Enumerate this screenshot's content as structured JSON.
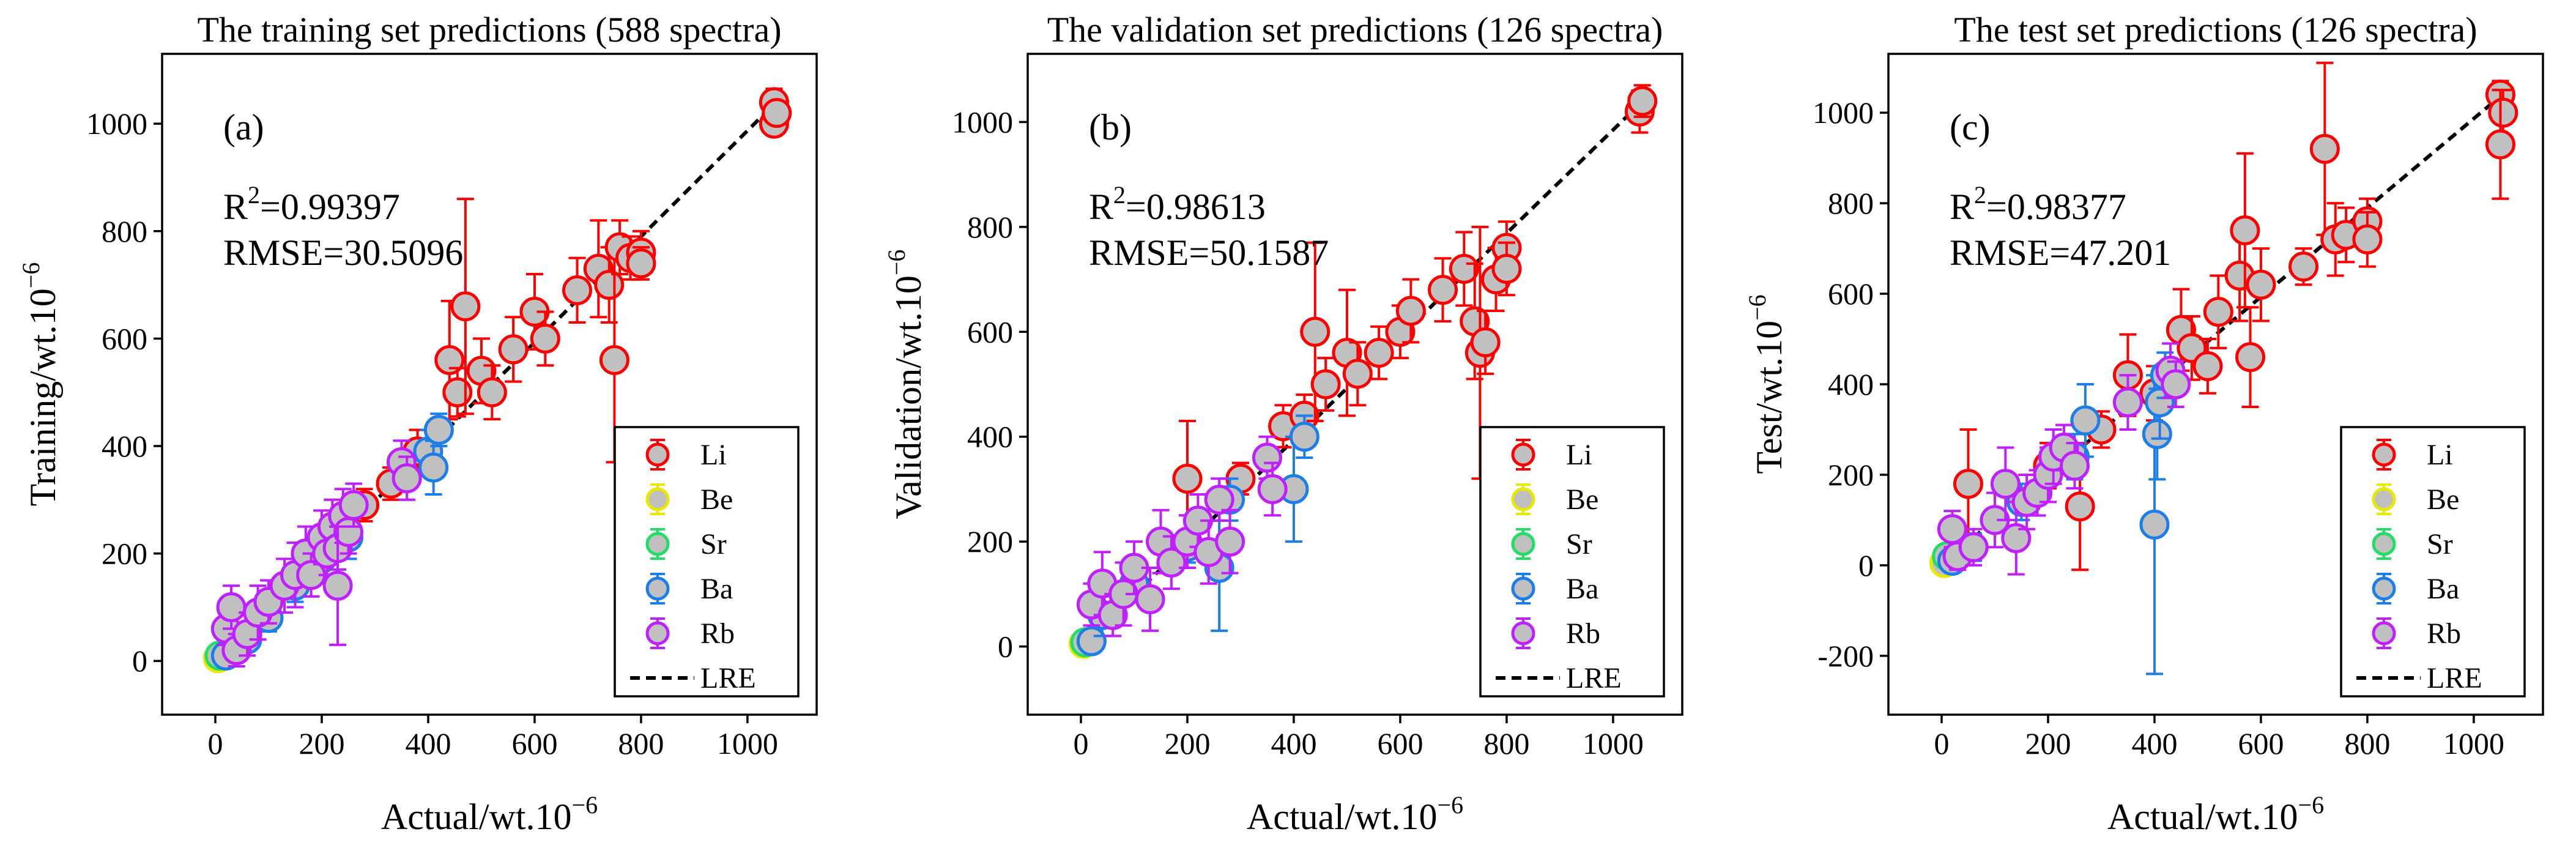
{
  "chart_data": [
    {
      "type": "scatter",
      "title": "The training set predictions (588 spectra)",
      "panel_label": "(a)",
      "xlabel": "Actual/wt.10",
      "ylabel": "Training/wt.10",
      "label_exponent": "−6",
      "stats": {
        "r2_prefix": "R",
        "r2_power": "2",
        "r2_value": "=0.99397",
        "rmse": "RMSE=30.5096"
      },
      "xlim": [
        -100,
        1130
      ],
      "ylim": [
        -100,
        1130
      ],
      "xticks": [
        0,
        200,
        400,
        600,
        800,
        1000
      ],
      "yticks": [
        0,
        200,
        400,
        600,
        800,
        1000
      ],
      "legend_position": "bottom-right",
      "series": [
        {
          "name": "Li",
          "color": "#ff0000",
          "points": [
            [
              440,
              560,
              110
            ],
            [
              455,
              500,
              45
            ],
            [
              470,
              660,
              200
            ],
            [
              500,
              540,
              60
            ],
            [
              520,
              500,
              50
            ],
            [
              560,
              580,
              60
            ],
            [
              600,
              650,
              70
            ],
            [
              620,
              600,
              50
            ],
            [
              680,
              690,
              60
            ],
            [
              720,
              730,
              90
            ],
            [
              740,
              700,
              70
            ],
            [
              750,
              560,
              190
            ],
            [
              760,
              770,
              50
            ],
            [
              780,
              750,
              40
            ],
            [
              800,
              760,
              40
            ],
            [
              800,
              740,
              30
            ],
            [
              1050,
              1040,
              25
            ],
            [
              1050,
              1000,
              20
            ],
            [
              1055,
              1020,
              20
            ],
            [
              380,
              390,
              40
            ],
            [
              330,
              330,
              30
            ],
            [
              280,
              290,
              30
            ]
          ]
        },
        {
          "name": "Be",
          "color": "#e8e800",
          "points": [
            [
              5,
              5,
              5
            ],
            [
              10,
              8,
              5
            ]
          ]
        },
        {
          "name": "Sr",
          "color": "#22dd66",
          "points": [
            [
              8,
              10,
              5
            ]
          ]
        },
        {
          "name": "Ba",
          "color": "#1e7ee8",
          "points": [
            [
              20,
              10,
              15
            ],
            [
              60,
              40,
              20
            ],
            [
              100,
              80,
              25
            ],
            [
              150,
              140,
              30
            ],
            [
              200,
              190,
              30
            ],
            [
              250,
              230,
              40
            ],
            [
              400,
              390,
              40
            ],
            [
              410,
              360,
              50
            ],
            [
              420,
              430,
              30
            ]
          ]
        },
        {
          "name": "Rb",
          "color": "#c020ff",
          "points": [
            [
              20,
              60,
              30
            ],
            [
              30,
              100,
              40
            ],
            [
              40,
              20,
              30
            ],
            [
              60,
              50,
              40
            ],
            [
              80,
              90,
              50
            ],
            [
              100,
              110,
              40
            ],
            [
              130,
              140,
              50
            ],
            [
              150,
              160,
              60
            ],
            [
              170,
              200,
              50
            ],
            [
              180,
              160,
              40
            ],
            [
              200,
              230,
              50
            ],
            [
              210,
              200,
              40
            ],
            [
              220,
              250,
              50
            ],
            [
              230,
              210,
              40
            ],
            [
              240,
              270,
              50
            ],
            [
              250,
              240,
              40
            ],
            [
              260,
              290,
              40
            ],
            [
              230,
              140,
              110
            ],
            [
              350,
              370,
              40
            ],
            [
              360,
              340,
              40
            ]
          ]
        }
      ],
      "fit": {
        "name": "LRE",
        "slope": 0.985,
        "intercept": 2
      }
    },
    {
      "type": "scatter",
      "title": "The validation set predictions (126 spectra)",
      "panel_label": "(b)",
      "xlabel": "Actual/wt.10",
      "ylabel": "Validation/wt.10",
      "label_exponent": "−6",
      "stats": {
        "r2_prefix": "R",
        "r2_power": "2",
        "r2_value": "=0.98613",
        "rmse": "RMSE=50.1587"
      },
      "xlim": [
        -100,
        1130
      ],
      "ylim": [
        -130,
        1130
      ],
      "xticks": [
        0,
        200,
        400,
        600,
        800,
        1000
      ],
      "yticks": [
        0,
        200,
        400,
        600,
        800,
        1000
      ],
      "legend_position": "bottom-right",
      "series": [
        {
          "name": "Li",
          "color": "#ff0000",
          "points": [
            [
              200,
              320,
              110
            ],
            [
              300,
              320,
              30
            ],
            [
              380,
              420,
              40
            ],
            [
              420,
              440,
              40
            ],
            [
              440,
              600,
              170
            ],
            [
              460,
              500,
              50
            ],
            [
              500,
              560,
              120
            ],
            [
              520,
              520,
              60
            ],
            [
              560,
              560,
              50
            ],
            [
              600,
              600,
              50
            ],
            [
              620,
              640,
              60
            ],
            [
              680,
              680,
              60
            ],
            [
              720,
              720,
              70
            ],
            [
              740,
              620,
              110
            ],
            [
              750,
              560,
              240
            ],
            [
              760,
              580,
              60
            ],
            [
              780,
              700,
              60
            ],
            [
              800,
              760,
              50
            ],
            [
              800,
              720,
              50
            ],
            [
              1050,
              1020,
              40
            ],
            [
              1055,
              1040,
              30
            ]
          ]
        },
        {
          "name": "Be",
          "color": "#e8e800",
          "points": [
            [
              5,
              5,
              5
            ]
          ]
        },
        {
          "name": "Sr",
          "color": "#22dd66",
          "points": [
            [
              8,
              8,
              5
            ]
          ]
        },
        {
          "name": "Ba",
          "color": "#1e7ee8",
          "points": [
            [
              20,
              10,
              15
            ],
            [
              40,
              60,
              40
            ],
            [
              100,
              120,
              30
            ],
            [
              200,
              190,
              30
            ],
            [
              260,
              150,
              120
            ],
            [
              280,
              280,
              40
            ],
            [
              400,
              300,
              100
            ],
            [
              420,
              400,
              40
            ]
          ]
        },
        {
          "name": "Rb",
          "color": "#c020ff",
          "points": [
            [
              20,
              80,
              40
            ],
            [
              40,
              120,
              60
            ],
            [
              60,
              60,
              40
            ],
            [
              80,
              100,
              60
            ],
            [
              100,
              150,
              50
            ],
            [
              130,
              90,
              60
            ],
            [
              150,
              200,
              60
            ],
            [
              170,
              160,
              50
            ],
            [
              200,
              200,
              50
            ],
            [
              220,
              240,
              50
            ],
            [
              240,
              180,
              60
            ],
            [
              260,
              280,
              40
            ],
            [
              280,
              200,
              60
            ],
            [
              350,
              360,
              40
            ],
            [
              360,
              300,
              50
            ]
          ]
        }
      ],
      "fit": {
        "name": "LRE",
        "slope": 0.985,
        "intercept": 0
      }
    },
    {
      "type": "scatter",
      "title": "The test set predictions (126 spectra)",
      "panel_label": "(c)",
      "xlabel": "Actual/wt.10",
      "ylabel": "Test/wt.10",
      "label_exponent": "−6",
      "stats": {
        "r2_prefix": "R",
        "r2_power": "2",
        "r2_value": "=0.98377",
        "rmse": "RMSE=47.201"
      },
      "xlim": [
        -100,
        1130
      ],
      "ylim": [
        -330,
        1130
      ],
      "xticks": [
        0,
        200,
        400,
        600,
        800,
        1000
      ],
      "yticks": [
        -200,
        0,
        200,
        400,
        600,
        800,
        1000
      ],
      "legend_position": "bottom-right",
      "series": [
        {
          "name": "Li",
          "color": "#ff0000",
          "points": [
            [
              50,
              180,
              120
            ],
            [
              200,
              220,
              50
            ],
            [
              260,
              130,
              140
            ],
            [
              300,
              300,
              40
            ],
            [
              350,
              420,
              90
            ],
            [
              400,
              380,
              60
            ],
            [
              450,
              520,
              90
            ],
            [
              470,
              480,
              70
            ],
            [
              500,
              440,
              60
            ],
            [
              520,
              560,
              80
            ],
            [
              560,
              640,
              100
            ],
            [
              570,
              740,
              170
            ],
            [
              580,
              460,
              110
            ],
            [
              600,
              620,
              80
            ],
            [
              680,
              660,
              40
            ],
            [
              720,
              920,
              190
            ],
            [
              740,
              720,
              80
            ],
            [
              760,
              730,
              60
            ],
            [
              800,
              760,
              50
            ],
            [
              800,
              720,
              60
            ],
            [
              1050,
              1040,
              30
            ],
            [
              1055,
              1000,
              50
            ],
            [
              1050,
              930,
              120
            ]
          ]
        },
        {
          "name": "Be",
          "color": "#e8e800",
          "points": [
            [
              5,
              5,
              5
            ]
          ]
        },
        {
          "name": "Sr",
          "color": "#22dd66",
          "points": [
            [
              10,
              20,
              10
            ]
          ]
        },
        {
          "name": "Ba",
          "color": "#1e7ee8",
          "points": [
            [
              20,
              10,
              20
            ],
            [
              60,
              40,
              30
            ],
            [
              150,
              140,
              40
            ],
            [
              250,
              240,
              50
            ],
            [
              270,
              320,
              80
            ],
            [
              400,
              90,
              330
            ],
            [
              405,
              290,
              100
            ],
            [
              410,
              360,
              80
            ],
            [
              420,
              420,
              50
            ]
          ]
        },
        {
          "name": "Rb",
          "color": "#c020ff",
          "points": [
            [
              20,
              80,
              40
            ],
            [
              30,
              20,
              30
            ],
            [
              60,
              40,
              40
            ],
            [
              100,
              100,
              60
            ],
            [
              120,
              180,
              80
            ],
            [
              140,
              60,
              80
            ],
            [
              160,
              140,
              60
            ],
            [
              180,
              160,
              50
            ],
            [
              200,
              200,
              60
            ],
            [
              210,
              240,
              60
            ],
            [
              230,
              260,
              50
            ],
            [
              250,
              220,
              50
            ],
            [
              350,
              360,
              60
            ],
            [
              430,
              430,
              60
            ],
            [
              440,
              400,
              50
            ]
          ]
        }
      ],
      "fit": {
        "name": "LRE",
        "slope": 0.985,
        "intercept": 2
      }
    }
  ]
}
